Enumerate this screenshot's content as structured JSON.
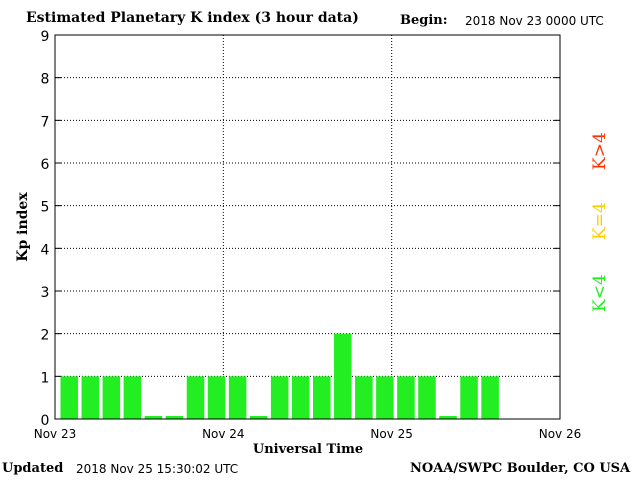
{
  "header": {
    "title": "Estimated Planetary K index (3 hour data)",
    "begin_label": "Begin:",
    "begin_value": "2018 Nov 23 0000 UTC"
  },
  "footer": {
    "updated_label": "Updated",
    "updated_value": "2018 Nov 25 15:30:02 UTC",
    "source": "NOAA/SWPC Boulder, CO USA"
  },
  "legend": [
    {
      "label": "K<4",
      "color": "#22ee22"
    },
    {
      "label": "K=4",
      "color": "#ffcc00"
    },
    {
      "label": "K>4",
      "color": "#ff3300"
    }
  ],
  "chart_data": {
    "type": "bar",
    "title": "Estimated Planetary K index (3 hour data)",
    "xlabel": "Universal Time",
    "ylabel": "Kp index",
    "ylim": [
      0,
      9
    ],
    "yticks": [
      "0",
      "1",
      "2",
      "3",
      "4",
      "5",
      "6",
      "7",
      "8",
      "9"
    ],
    "xtick_labels": [
      "Nov 23",
      "Nov 24",
      "Nov 25",
      "Nov 26"
    ],
    "grid": true,
    "bar_color": "#22ee22",
    "values": [
      1,
      1,
      1,
      1,
      0.07,
      0.07,
      1,
      1,
      1,
      0.07,
      1,
      1,
      1,
      2,
      1,
      1,
      1,
      1,
      0.07,
      1,
      1
    ]
  }
}
